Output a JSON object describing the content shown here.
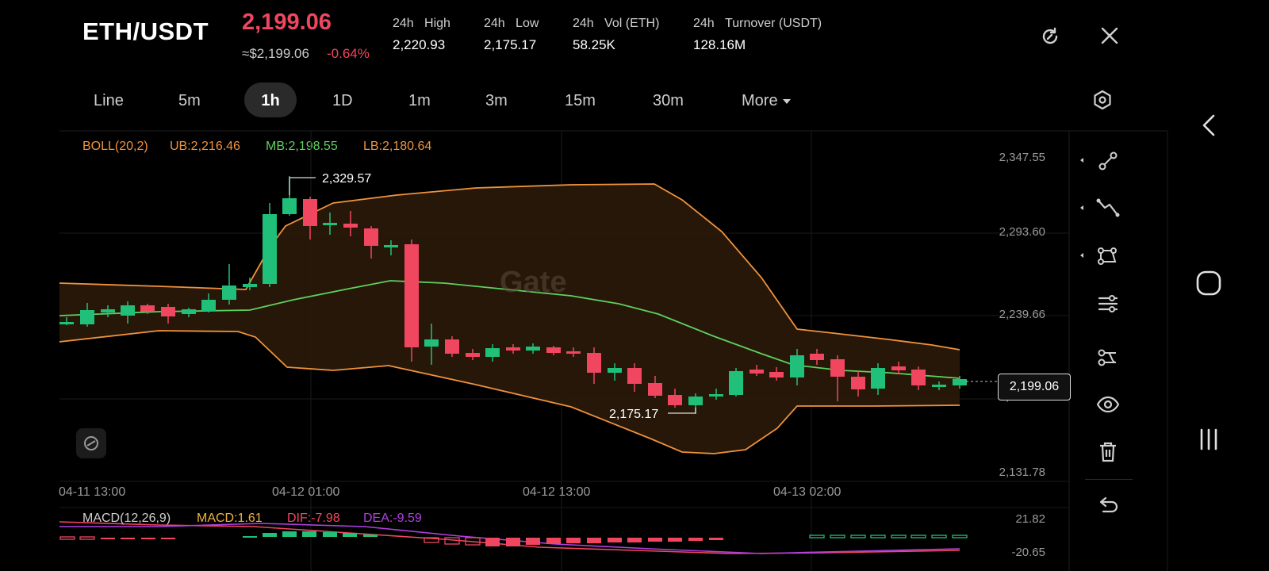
{
  "header": {
    "pair": "ETH/USDT",
    "last_price": "2,199.06",
    "approx_usd": "≈$2,199.06",
    "change_pct": "-0.64%",
    "stats": [
      {
        "label_a": "24h",
        "label_b": "High",
        "value": "2,220.93"
      },
      {
        "label_a": "24h",
        "label_b": "Low",
        "value": "2,175.17"
      },
      {
        "label_a": "24h",
        "label_b": "Vol (ETH)",
        "value": "58.25K"
      },
      {
        "label_a": "24h",
        "label_b": "Turnover (USDT)",
        "value": "128.16M"
      }
    ],
    "refresh_icon": "refresh-icon",
    "close_icon": "close-icon"
  },
  "timeframes": {
    "items": [
      "Line",
      "5m",
      "1h",
      "1D",
      "1m",
      "3m",
      "15m",
      "30m",
      "More"
    ],
    "active": "1h"
  },
  "indicator": {
    "name": "BOLL(20,2)",
    "ub": "UB:2,216.46",
    "mb": "MB:2,198.55",
    "lb": "LB:2,180.64",
    "colors": {
      "ub": "#f0923c",
      "mb": "#5ed05e",
      "lb": "#f0923c"
    }
  },
  "chart": {
    "price_axis": [
      "2,347.55",
      "2,293.60",
      "2,239.66",
      "2,185.72",
      "2,131.78"
    ],
    "time_axis": [
      "04-11 13:00",
      "04-12 01:00",
      "04-12 13:00",
      "04-13 02:00"
    ],
    "high_label": "2,329.57",
    "low_label": "2,175.17",
    "current_price_tag": "2,199.06",
    "watermark": "Gate",
    "up_color": "#20c07a",
    "down_color": "#f0465f"
  },
  "macd": {
    "name": "MACD(12,26,9)",
    "macd": "MACD:1.61",
    "dif": "DIF:-7.98",
    "dea": "DEA:-9.59",
    "axis": [
      "21.82",
      "-20.65"
    ],
    "colors": {
      "macd": "#f0b040",
      "dif": "#f0465f",
      "dea": "#b040e0"
    }
  },
  "tools": [
    "trend-line-icon",
    "zigzag-icon",
    "shape-icon",
    "settings-sliders-icon",
    "indicator-icon",
    "eye-icon",
    "trash-icon",
    "undo-icon"
  ],
  "system_nav": [
    "back-icon",
    "home-icon",
    "recents-icon"
  ]
}
